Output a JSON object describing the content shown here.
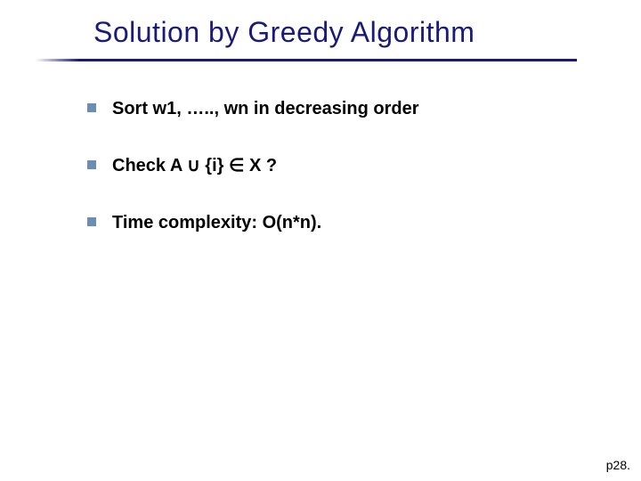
{
  "title": "Solution by Greedy Algorithm",
  "title_color": "#1a1a7a",
  "title_fontsize": 32,
  "underline_color": "#1a1a7a",
  "bullet_marker_color": "#6b8fb3",
  "bullets": [
    {
      "text": "Sort  w1, ….., wn in decreasing order"
    },
    {
      "text": "Check  A ∪ {i} ∈ X ?"
    },
    {
      "text": "Time complexity:  O(n*n)."
    }
  ],
  "page_number": "p28.",
  "background_color": "#ffffff",
  "text_color": "#000000",
  "bullet_fontsize": 20
}
